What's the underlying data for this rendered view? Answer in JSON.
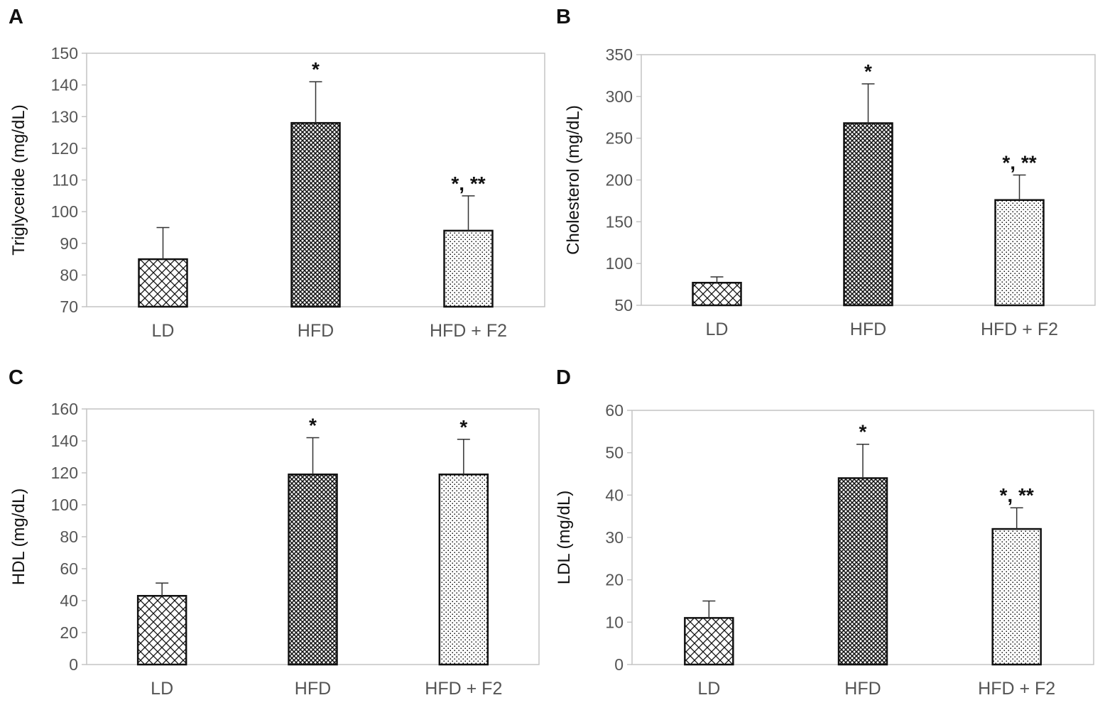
{
  "colors": {
    "bar_outline": "#111111",
    "axis_text": "#555555",
    "frame": "#c4c4c4",
    "pattern_ink": "#111111"
  },
  "chart_data": [
    {
      "panel": "A",
      "type": "bar",
      "categories": [
        "LD",
        "HFD",
        "HFD + F2"
      ],
      "values": [
        85,
        128,
        94
      ],
      "errors": [
        10,
        13,
        11
      ],
      "patterns": [
        "crosshatch-wide",
        "crosshatch-dense",
        "dots"
      ],
      "annotations": [
        "",
        "*",
        "*, **"
      ],
      "ylabel": "Triglyceride  (mg/dL)",
      "xlabel": "",
      "ylim": [
        70,
        150
      ],
      "yticks": [
        70,
        80,
        90,
        100,
        110,
        120,
        130,
        140,
        150
      ],
      "grid": false
    },
    {
      "panel": "B",
      "type": "bar",
      "categories": [
        "LD",
        "HFD",
        "HFD + F2"
      ],
      "values": [
        77,
        268,
        176
      ],
      "errors": [
        7,
        47,
        30
      ],
      "patterns": [
        "crosshatch-wide",
        "crosshatch-dense",
        "dots"
      ],
      "annotations": [
        "",
        "*",
        "*, **"
      ],
      "ylabel": "Cholesterol  (mg/dL)",
      "xlabel": "",
      "ylim": [
        50,
        350
      ],
      "yticks": [
        50,
        100,
        150,
        200,
        250,
        300,
        350
      ],
      "grid": false
    },
    {
      "panel": "C",
      "type": "bar",
      "categories": [
        "LD",
        "HFD",
        "HFD + F2"
      ],
      "values": [
        43,
        119,
        119
      ],
      "errors": [
        8,
        23,
        22
      ],
      "patterns": [
        "crosshatch-wide",
        "crosshatch-dense",
        "dots"
      ],
      "annotations": [
        "",
        "*",
        "*"
      ],
      "ylabel": "HDL  (mg/dL)",
      "xlabel": "",
      "ylim": [
        0,
        160
      ],
      "yticks": [
        0,
        20,
        40,
        60,
        80,
        100,
        120,
        140,
        160
      ],
      "grid": false
    },
    {
      "panel": "D",
      "type": "bar",
      "categories": [
        "LD",
        "HFD",
        "HFD + F2"
      ],
      "values": [
        11,
        44,
        32
      ],
      "errors": [
        4,
        8,
        5
      ],
      "patterns": [
        "crosshatch-wide",
        "crosshatch-dense",
        "dots"
      ],
      "annotations": [
        "",
        "*",
        "*, **"
      ],
      "ylabel": "LDL  (mg/dL)",
      "xlabel": "",
      "ylim": [
        0,
        60
      ],
      "yticks": [
        0,
        10,
        20,
        30,
        40,
        50,
        60
      ],
      "grid": false
    }
  ]
}
